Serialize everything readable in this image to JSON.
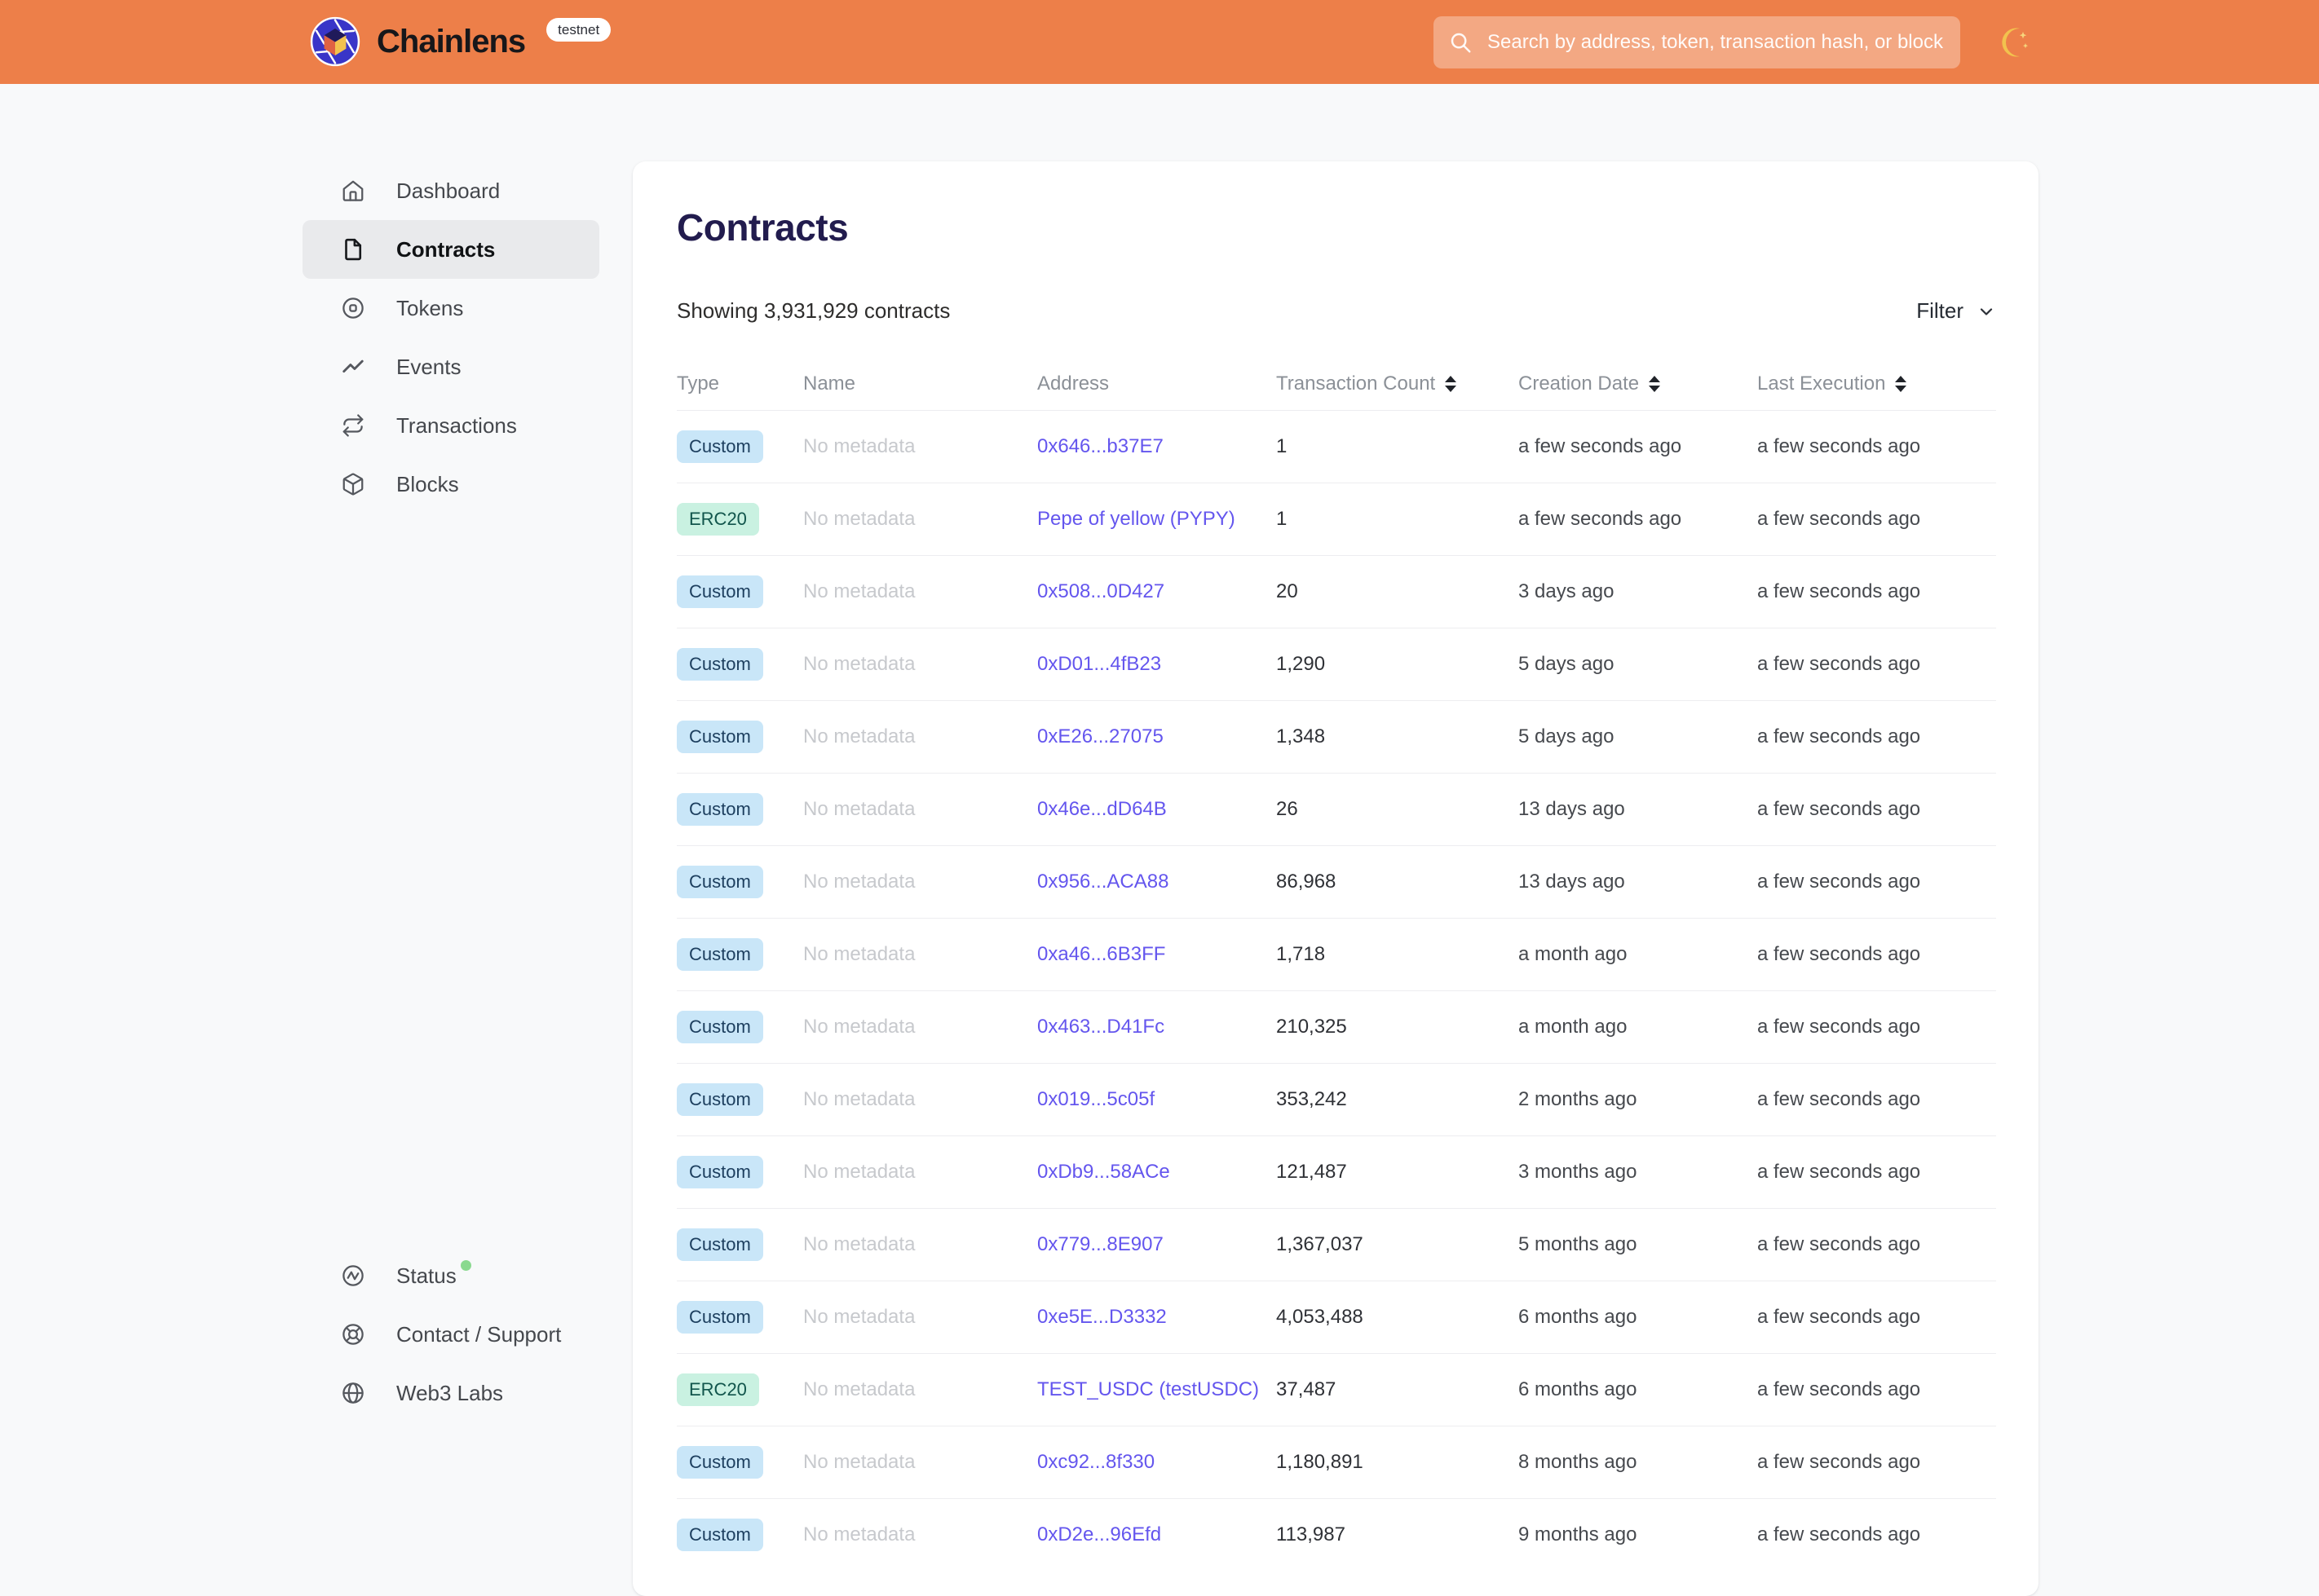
{
  "header": {
    "brand": "Chainlens",
    "environment_badge": "testnet",
    "search": {
      "placeholder": "Search by address, token, transaction hash, or block number"
    }
  },
  "sidebar": {
    "items": [
      {
        "label": "Dashboard",
        "icon": "home-icon",
        "active": false
      },
      {
        "label": "Contracts",
        "icon": "document-icon",
        "active": true
      },
      {
        "label": "Tokens",
        "icon": "token-circle-icon",
        "active": false
      },
      {
        "label": "Events",
        "icon": "activity-zigzag-icon",
        "active": false
      },
      {
        "label": "Transactions",
        "icon": "repeat-arrows-icon",
        "active": false
      },
      {
        "label": "Blocks",
        "icon": "cube-icon",
        "active": false
      }
    ],
    "footer_items": [
      {
        "label": "Status",
        "icon": "pulse-circle-icon",
        "has_status_dot": true
      },
      {
        "label": "Contact / Support",
        "icon": "lifebuoy-icon",
        "has_status_dot": false
      },
      {
        "label": "Web3 Labs",
        "icon": "globe-icon",
        "has_status_dot": false
      }
    ]
  },
  "main": {
    "title": "Contracts",
    "summary": "Showing 3,931,929 contracts",
    "filter_label": "Filter",
    "table": {
      "columns": [
        {
          "label": "Type",
          "sortable": false
        },
        {
          "label": "Name",
          "sortable": false
        },
        {
          "label": "Address",
          "sortable": false
        },
        {
          "label": "Transaction Count",
          "sortable": true
        },
        {
          "label": "Creation Date",
          "sortable": true
        },
        {
          "label": "Last Execution",
          "sortable": true
        }
      ],
      "rows": [
        {
          "type": "Custom",
          "variant": "custom",
          "name": "No metadata",
          "address": "0x646...b37E7",
          "tx_count": "1",
          "creation": "a few seconds ago",
          "last_execution": "a few seconds ago"
        },
        {
          "type": "ERC20",
          "variant": "erc20",
          "name": "No metadata",
          "address": "Pepe of yellow (PYPY)",
          "tx_count": "1",
          "creation": "a few seconds ago",
          "last_execution": "a few seconds ago"
        },
        {
          "type": "Custom",
          "variant": "custom",
          "name": "No metadata",
          "address": "0x508...0D427",
          "tx_count": "20",
          "creation": "3 days ago",
          "last_execution": "a few seconds ago"
        },
        {
          "type": "Custom",
          "variant": "custom",
          "name": "No metadata",
          "address": "0xD01...4fB23",
          "tx_count": "1,290",
          "creation": "5 days ago",
          "last_execution": "a few seconds ago"
        },
        {
          "type": "Custom",
          "variant": "custom",
          "name": "No metadata",
          "address": "0xE26...27075",
          "tx_count": "1,348",
          "creation": "5 days ago",
          "last_execution": "a few seconds ago"
        },
        {
          "type": "Custom",
          "variant": "custom",
          "name": "No metadata",
          "address": "0x46e...dD64B",
          "tx_count": "26",
          "creation": "13 days ago",
          "last_execution": "a few seconds ago"
        },
        {
          "type": "Custom",
          "variant": "custom",
          "name": "No metadata",
          "address": "0x956...ACA88",
          "tx_count": "86,968",
          "creation": "13 days ago",
          "last_execution": "a few seconds ago"
        },
        {
          "type": "Custom",
          "variant": "custom",
          "name": "No metadata",
          "address": "0xa46...6B3FF",
          "tx_count": "1,718",
          "creation": "a month ago",
          "last_execution": "a few seconds ago"
        },
        {
          "type": "Custom",
          "variant": "custom",
          "name": "No metadata",
          "address": "0x463...D41Fc",
          "tx_count": "210,325",
          "creation": "a month ago",
          "last_execution": "a few seconds ago"
        },
        {
          "type": "Custom",
          "variant": "custom",
          "name": "No metadata",
          "address": "0x019...5c05f",
          "tx_count": "353,242",
          "creation": "2 months ago",
          "last_execution": "a few seconds ago"
        },
        {
          "type": "Custom",
          "variant": "custom",
          "name": "No metadata",
          "address": "0xDb9...58ACe",
          "tx_count": "121,487",
          "creation": "3 months ago",
          "last_execution": "a few seconds ago"
        },
        {
          "type": "Custom",
          "variant": "custom",
          "name": "No metadata",
          "address": "0x779...8E907",
          "tx_count": "1,367,037",
          "creation": "5 months ago",
          "last_execution": "a few seconds ago"
        },
        {
          "type": "Custom",
          "variant": "custom",
          "name": "No metadata",
          "address": "0xe5E...D3332",
          "tx_count": "4,053,488",
          "creation": "6 months ago",
          "last_execution": "a few seconds ago"
        },
        {
          "type": "ERC20",
          "variant": "erc20",
          "name": "No metadata",
          "address": "TEST_USDC (testUSDC)",
          "tx_count": "37,487",
          "creation": "6 months ago",
          "last_execution": "a few seconds ago"
        },
        {
          "type": "Custom",
          "variant": "custom",
          "name": "No metadata",
          "address": "0xc92...8f330",
          "tx_count": "1,180,891",
          "creation": "8 months ago",
          "last_execution": "a few seconds ago"
        },
        {
          "type": "Custom",
          "variant": "custom",
          "name": "No metadata",
          "address": "0xD2e...96Efd",
          "tx_count": "113,987",
          "creation": "9 months ago",
          "last_execution": "a few seconds ago"
        }
      ]
    }
  },
  "colors": {
    "header_bg": "#ed7f49",
    "page_bg": "#f8f9fa",
    "card_bg": "#ffffff",
    "heading": "#221c4e",
    "link": "#6456ee",
    "badge_custom_bg": "#c9e6f8",
    "badge_custom_text": "#1c3e5e",
    "badge_erc20_bg": "#c9f1e1",
    "badge_erc20_text": "#11554c",
    "active_nav_bg": "#e9eaec",
    "status_dot": "#8ad98f",
    "moon": "#f2c24e"
  }
}
